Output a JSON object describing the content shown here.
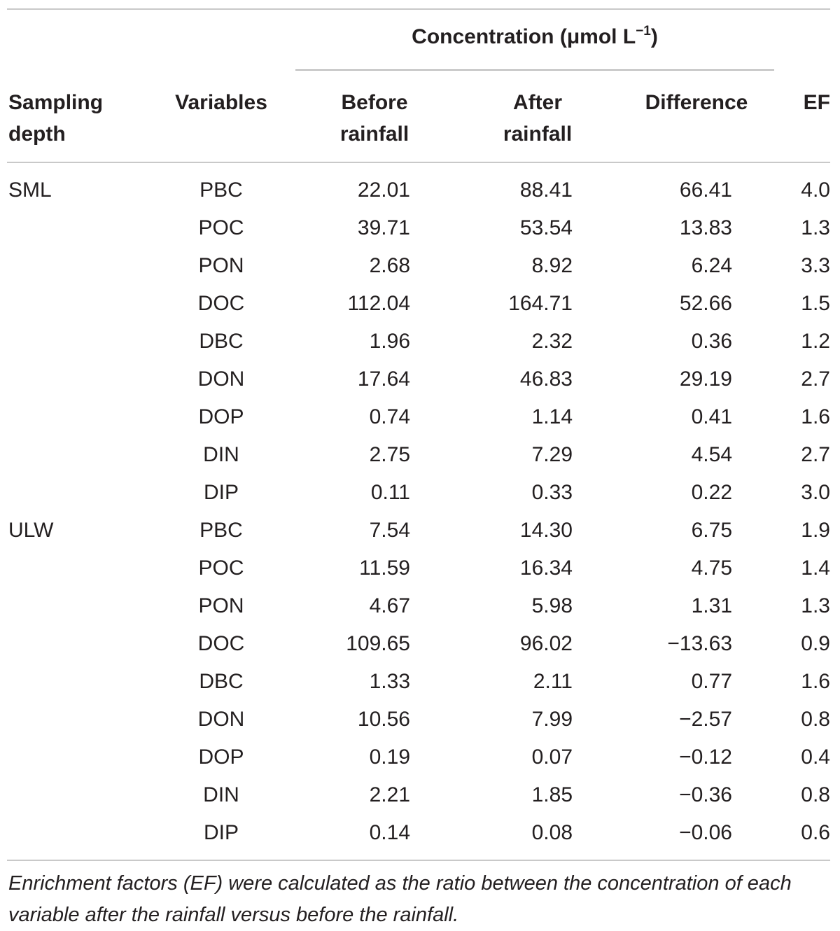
{
  "table": {
    "group_header": {
      "label": "Concentration (μmol L",
      "exponent": "−1",
      "close": ")"
    },
    "columns": {
      "depth_line1": "Sampling",
      "depth_line2": "depth",
      "variables": "Variables",
      "before_line1": "Before",
      "before_line2": "rainfall",
      "after_line1": "After",
      "after_line2": "rainfall",
      "difference": "Difference",
      "ef": "EF"
    },
    "rows": [
      {
        "depth": "SML",
        "variable": "PBC",
        "before": "22.01",
        "after": "88.41",
        "difference": "66.41",
        "ef": "4.0"
      },
      {
        "depth": "",
        "variable": "POC",
        "before": "39.71",
        "after": "53.54",
        "difference": "13.83",
        "ef": "1.3"
      },
      {
        "depth": "",
        "variable": "PON",
        "before": "2.68",
        "after": "8.92",
        "difference": "6.24",
        "ef": "3.3"
      },
      {
        "depth": "",
        "variable": "DOC",
        "before": "112.04",
        "after": "164.71",
        "difference": "52.66",
        "ef": "1.5"
      },
      {
        "depth": "",
        "variable": "DBC",
        "before": "1.96",
        "after": "2.32",
        "difference": "0.36",
        "ef": "1.2"
      },
      {
        "depth": "",
        "variable": "DON",
        "before": "17.64",
        "after": "46.83",
        "difference": "29.19",
        "ef": "2.7"
      },
      {
        "depth": "",
        "variable": "DOP",
        "before": "0.74",
        "after": "1.14",
        "difference": "0.41",
        "ef": "1.6"
      },
      {
        "depth": "",
        "variable": "DIN",
        "before": "2.75",
        "after": "7.29",
        "difference": "4.54",
        "ef": "2.7"
      },
      {
        "depth": "",
        "variable": "DIP",
        "before": "0.11",
        "after": "0.33",
        "difference": "0.22",
        "ef": "3.0"
      },
      {
        "depth": "ULW",
        "variable": "PBC",
        "before": "7.54",
        "after": "14.30",
        "difference": "6.75",
        "ef": "1.9"
      },
      {
        "depth": "",
        "variable": "POC",
        "before": "11.59",
        "after": "16.34",
        "difference": "4.75",
        "ef": "1.4"
      },
      {
        "depth": "",
        "variable": "PON",
        "before": "4.67",
        "after": "5.98",
        "difference": "1.31",
        "ef": "1.3"
      },
      {
        "depth": "",
        "variable": "DOC",
        "before": "109.65",
        "after": "96.02",
        "difference": "−13.63",
        "ef": "0.9"
      },
      {
        "depth": "",
        "variable": "DBC",
        "before": "1.33",
        "after": "2.11",
        "difference": "0.77",
        "ef": "1.6"
      },
      {
        "depth": "",
        "variable": "DON",
        "before": "10.56",
        "after": "7.99",
        "difference": "−2.57",
        "ef": "0.8"
      },
      {
        "depth": "",
        "variable": "DOP",
        "before": "0.19",
        "after": "0.07",
        "difference": "−0.12",
        "ef": "0.4"
      },
      {
        "depth": "",
        "variable": "DIN",
        "before": "2.21",
        "after": "1.85",
        "difference": "−0.36",
        "ef": "0.8"
      },
      {
        "depth": "",
        "variable": "DIP",
        "before": "0.14",
        "after": "0.08",
        "difference": "−0.06",
        "ef": "0.6"
      }
    ],
    "footnote": "Enrichment factors (EF) were calculated as the ratio between the concentration of each variable after the rainfall versus before the rainfall."
  }
}
